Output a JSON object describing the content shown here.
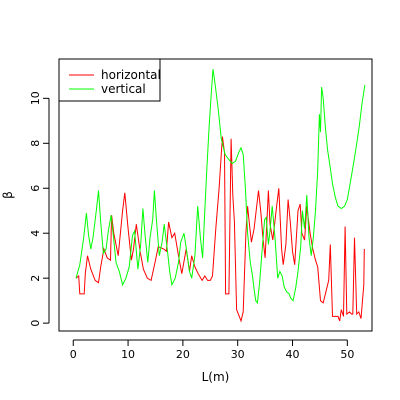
{
  "chart_data": {
    "type": "line",
    "xlabel": "L(m)",
    "ylabel": "β",
    "xlim": [
      -2.6,
      54.5
    ],
    "ylim": [
      -0.35,
      11.75
    ],
    "xticks": [
      0,
      10,
      20,
      30,
      40,
      50
    ],
    "yticks": [
      0,
      2,
      4,
      6,
      8,
      10
    ],
    "grid": false,
    "legend_position": "top-left",
    "series": [
      {
        "name": "horizontal",
        "color": "#ff0000",
        "points": [
          [
            0.5,
            2.0
          ],
          [
            1.0,
            2.1
          ],
          [
            1.2,
            1.3
          ],
          [
            2.0,
            1.3
          ],
          [
            2.2,
            2.2
          ],
          [
            2.6,
            3.0
          ],
          [
            3.2,
            2.4
          ],
          [
            4.0,
            1.9
          ],
          [
            4.6,
            1.8
          ],
          [
            5.0,
            2.5
          ],
          [
            5.6,
            3.3
          ],
          [
            6.2,
            2.9
          ],
          [
            6.8,
            2.8
          ],
          [
            7.0,
            4.8
          ],
          [
            7.4,
            4.0
          ],
          [
            8.2,
            3.0
          ],
          [
            9.0,
            5.0
          ],
          [
            9.4,
            5.8
          ],
          [
            10.0,
            4.2
          ],
          [
            10.6,
            2.8
          ],
          [
            11.0,
            3.3
          ],
          [
            11.5,
            4.4
          ],
          [
            12.2,
            3.2
          ],
          [
            12.8,
            2.4
          ],
          [
            13.5,
            2.0
          ],
          [
            14.2,
            1.9
          ],
          [
            15.0,
            2.8
          ],
          [
            15.5,
            3.4
          ],
          [
            16.5,
            3.3
          ],
          [
            17.0,
            3.2
          ],
          [
            17.4,
            4.5
          ],
          [
            18.0,
            3.8
          ],
          [
            18.5,
            4.0
          ],
          [
            19.2,
            3.0
          ],
          [
            19.8,
            2.2
          ],
          [
            20.6,
            3.3
          ],
          [
            21.2,
            2.3
          ],
          [
            21.6,
            3.0
          ],
          [
            22.2,
            2.5
          ],
          [
            22.8,
            2.2
          ],
          [
            23.5,
            1.9
          ],
          [
            24.0,
            2.1
          ],
          [
            24.5,
            1.9
          ],
          [
            25.0,
            1.9
          ],
          [
            25.4,
            2.1
          ],
          [
            26.0,
            4.2
          ],
          [
            26.6,
            6.0
          ],
          [
            27.2,
            8.3
          ],
          [
            27.6,
            7.6
          ],
          [
            27.8,
            1.3
          ],
          [
            28.4,
            1.3
          ],
          [
            28.8,
            8.2
          ],
          [
            29.1,
            5.7
          ],
          [
            29.4,
            4.5
          ],
          [
            29.8,
            0.6
          ],
          [
            30.3,
            0.3
          ],
          [
            30.6,
            0.1
          ],
          [
            31.0,
            0.5
          ],
          [
            31.5,
            4.0
          ],
          [
            31.8,
            5.2
          ],
          [
            32.1,
            4.5
          ],
          [
            32.5,
            3.6
          ],
          [
            33.0,
            4.2
          ],
          [
            33.8,
            5.9
          ],
          [
            34.2,
            5.0
          ],
          [
            34.6,
            3.8
          ],
          [
            35.0,
            2.9
          ],
          [
            35.6,
            5.9
          ],
          [
            35.9,
            4.4
          ],
          [
            36.4,
            3.7
          ],
          [
            37.0,
            5.0
          ],
          [
            37.5,
            6.0
          ],
          [
            38.0,
            3.3
          ],
          [
            38.3,
            2.6
          ],
          [
            38.8,
            3.5
          ],
          [
            39.2,
            5.5
          ],
          [
            39.6,
            4.5
          ],
          [
            40.0,
            3.2
          ],
          [
            40.4,
            2.6
          ],
          [
            41.0,
            5.0
          ],
          [
            41.4,
            5.3
          ],
          [
            41.7,
            4.0
          ],
          [
            42.2,
            3.7
          ],
          [
            42.6,
            5.2
          ],
          [
            43.2,
            4.0
          ],
          [
            43.7,
            3.3
          ],
          [
            44.2,
            2.8
          ],
          [
            44.6,
            2.5
          ],
          [
            45.1,
            1.0
          ],
          [
            45.6,
            0.9
          ],
          [
            46.0,
            1.3
          ],
          [
            46.6,
            1.9
          ],
          [
            46.9,
            3.5
          ],
          [
            47.3,
            0.3
          ],
          [
            47.8,
            0.3
          ],
          [
            48.3,
            0.3
          ],
          [
            48.6,
            0.1
          ],
          [
            48.9,
            0.6
          ],
          [
            49.3,
            0.3
          ],
          [
            49.6,
            4.3
          ],
          [
            49.9,
            0.4
          ],
          [
            50.4,
            0.5
          ],
          [
            50.8,
            0.4
          ],
          [
            51.0,
            0.4
          ],
          [
            51.3,
            3.8
          ],
          [
            51.7,
            0.4
          ],
          [
            52.1,
            0.5
          ],
          [
            52.5,
            0.2
          ],
          [
            53.0,
            1.7
          ],
          [
            53.1,
            3.3
          ]
        ]
      },
      {
        "name": "vertical",
        "color": "#00ff00",
        "points": [
          [
            0.5,
            2.0
          ],
          [
            1.2,
            2.6
          ],
          [
            1.9,
            3.8
          ],
          [
            2.4,
            4.9
          ],
          [
            2.8,
            3.9
          ],
          [
            3.2,
            3.3
          ],
          [
            3.6,
            3.8
          ],
          [
            4.2,
            5.0
          ],
          [
            4.6,
            5.9
          ],
          [
            5.0,
            4.5
          ],
          [
            5.5,
            3.1
          ],
          [
            6.0,
            3.3
          ],
          [
            6.4,
            4.1
          ],
          [
            6.9,
            4.8
          ],
          [
            7.4,
            3.7
          ],
          [
            7.8,
            2.7
          ],
          [
            8.4,
            2.3
          ],
          [
            9.0,
            1.7
          ],
          [
            9.6,
            2.0
          ],
          [
            10.2,
            2.5
          ],
          [
            10.8,
            3.9
          ],
          [
            11.2,
            4.1
          ],
          [
            11.8,
            2.4
          ],
          [
            12.3,
            3.5
          ],
          [
            12.7,
            5.1
          ],
          [
            13.1,
            3.9
          ],
          [
            13.6,
            2.7
          ],
          [
            14.0,
            3.8
          ],
          [
            14.5,
            4.6
          ],
          [
            14.8,
            5.9
          ],
          [
            15.2,
            4.5
          ],
          [
            15.7,
            3.0
          ],
          [
            16.2,
            3.6
          ],
          [
            16.6,
            4.4
          ],
          [
            17.2,
            3.2
          ],
          [
            17.6,
            2.3
          ],
          [
            18.0,
            1.7
          ],
          [
            18.6,
            2.0
          ],
          [
            19.2,
            2.7
          ],
          [
            19.6,
            3.6
          ],
          [
            20.2,
            4.0
          ],
          [
            20.7,
            3.2
          ],
          [
            21.2,
            2.3
          ],
          [
            21.6,
            2.0
          ],
          [
            22.2,
            3.0
          ],
          [
            22.7,
            5.2
          ],
          [
            23.2,
            3.8
          ],
          [
            23.6,
            2.9
          ],
          [
            24.0,
            5.0
          ],
          [
            24.4,
            7.0
          ],
          [
            24.8,
            8.8
          ],
          [
            25.2,
            10.3
          ],
          [
            25.5,
            11.3
          ],
          [
            25.9,
            10.6
          ],
          [
            26.4,
            9.6
          ],
          [
            27.0,
            8.2
          ],
          [
            27.7,
            7.5
          ],
          [
            28.3,
            7.3
          ],
          [
            29.0,
            7.1
          ],
          [
            29.6,
            7.2
          ],
          [
            30.2,
            7.6
          ],
          [
            30.6,
            7.8
          ],
          [
            31.0,
            7.5
          ],
          [
            31.4,
            6.0
          ],
          [
            31.8,
            4.0
          ],
          [
            32.3,
            2.7
          ],
          [
            32.7,
            2.1
          ],
          [
            33.0,
            1.5
          ],
          [
            33.3,
            1.0
          ],
          [
            33.6,
            0.9
          ],
          [
            34.0,
            1.8
          ],
          [
            34.5,
            3.4
          ],
          [
            34.9,
            4.6
          ],
          [
            35.2,
            4.7
          ],
          [
            35.6,
            3.5
          ],
          [
            35.9,
            4.1
          ],
          [
            36.3,
            5.2
          ],
          [
            36.8,
            3.8
          ],
          [
            37.3,
            2.0
          ],
          [
            37.7,
            2.3
          ],
          [
            38.1,
            2.1
          ],
          [
            38.5,
            1.6
          ],
          [
            38.9,
            1.4
          ],
          [
            39.4,
            1.3
          ],
          [
            39.7,
            1.1
          ],
          [
            40.1,
            1.0
          ],
          [
            40.6,
            1.6
          ],
          [
            41.0,
            2.3
          ],
          [
            41.5,
            3.4
          ],
          [
            41.8,
            5.0
          ],
          [
            42.2,
            4.2
          ],
          [
            42.6,
            5.7
          ],
          [
            43.0,
            3.8
          ],
          [
            43.4,
            3.0
          ],
          [
            43.8,
            3.8
          ],
          [
            44.2,
            5.0
          ],
          [
            44.6,
            6.8
          ],
          [
            44.9,
            9.3
          ],
          [
            45.1,
            8.5
          ],
          [
            45.3,
            10.5
          ],
          [
            45.6,
            10.0
          ],
          [
            46.0,
            8.7
          ],
          [
            46.4,
            7.7
          ],
          [
            46.9,
            6.9
          ],
          [
            47.3,
            6.2
          ],
          [
            47.8,
            5.6
          ],
          [
            48.3,
            5.2
          ],
          [
            48.9,
            5.1
          ],
          [
            49.5,
            5.2
          ],
          [
            50.0,
            5.5
          ],
          [
            50.5,
            6.2
          ],
          [
            51.0,
            6.9
          ],
          [
            51.6,
            7.8
          ],
          [
            52.2,
            8.8
          ],
          [
            52.7,
            9.8
          ],
          [
            53.2,
            10.6
          ]
        ]
      }
    ]
  }
}
